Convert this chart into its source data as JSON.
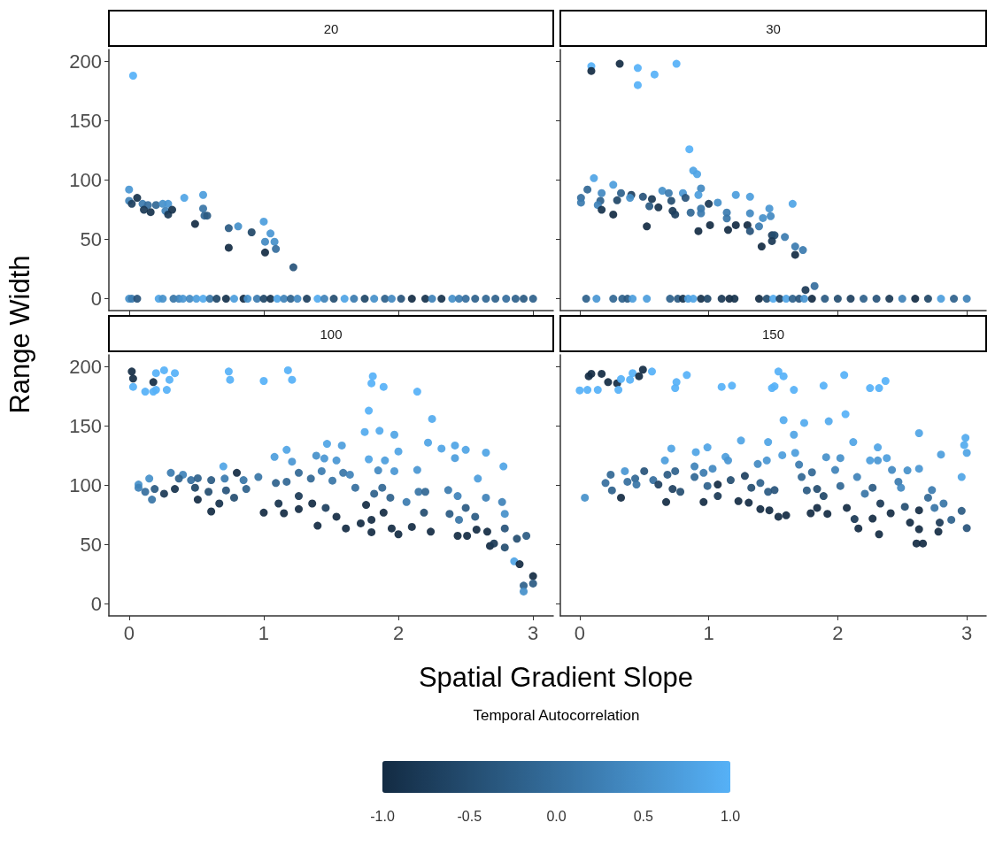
{
  "chart_data": [
    {
      "type": "scatter",
      "title": "20",
      "ylabel": "Range Width",
      "marker": "circle",
      "tick_labels": "y",
      "xlim": [
        -0.15,
        3.15
      ],
      "ylim": [
        -10,
        210
      ],
      "xticks": [
        0,
        1,
        2,
        3
      ],
      "yticks": [
        0,
        50,
        100,
        150,
        200
      ],
      "x": [
        0.03,
        0.0,
        0.0,
        0.02,
        0.06,
        0.1,
        0.14,
        0.11,
        0.16,
        0.2,
        0.25,
        0.29,
        0.27,
        0.29,
        0.32,
        0.41,
        0.55,
        0.55,
        0.56,
        0.58,
        0.49,
        0.74,
        0.81,
        0.74,
        0.91,
        1.0,
        1.05,
        1.01,
        1.08,
        1.09,
        1.01,
        1.22,
        0.0,
        0.02,
        0.06,
        0.22,
        0.25,
        0.33,
        0.37,
        0.4,
        0.45,
        0.5,
        0.55,
        0.6,
        0.65,
        0.72,
        0.78,
        0.85,
        0.88,
        0.95,
        1.0,
        1.05,
        1.1,
        1.15,
        1.2,
        1.25,
        1.32,
        1.4,
        1.45,
        1.52,
        1.6,
        1.67,
        1.75,
        1.82,
        1.9,
        1.95,
        2.02,
        2.1,
        2.2,
        2.25,
        2.32,
        2.4,
        2.45,
        2.5,
        2.57,
        2.65,
        2.72,
        2.8,
        2.87,
        2.93,
        3.0
      ],
      "values": [
        188,
        92,
        82.5,
        80,
        85,
        80,
        79,
        75,
        73,
        79,
        80,
        80,
        74,
        71,
        75,
        85,
        87.5,
        76,
        70,
        70,
        63,
        59.5,
        61,
        43,
        56,
        65,
        55,
        48,
        48,
        42,
        39,
        26.5,
        0,
        0,
        0,
        0,
        0,
        0,
        0,
        0,
        0,
        0,
        0,
        0,
        0,
        0,
        0,
        0,
        0,
        0,
        0,
        0,
        0,
        0,
        0,
        0,
        0,
        0,
        0,
        0,
        0,
        0,
        0,
        0,
        0,
        0,
        0,
        0,
        0,
        0,
        0,
        0,
        0,
        0,
        0,
        0,
        0,
        0,
        0,
        0,
        0
      ],
      "colors": [
        "#56b1f7",
        "#4996d3",
        "#3f82b8",
        "#1d3f5e",
        "#16324c",
        "#3b7baf",
        "#356e9d",
        "#1a3855",
        "#16324c",
        "#316794",
        "#4590ca",
        "#4996d3",
        "#3f82b8",
        "#1a3855",
        "#16324c",
        "#4fa4e5",
        "#4c9ddc",
        "#3875a6",
        "#316794",
        "#2a5a82",
        "#132b43",
        "#2a5a82",
        "#4590ca",
        "#132b43",
        "#204667",
        "#4c9ddc",
        "#4996d3",
        "#4289c1",
        "#4590ca",
        "#356e9d",
        "#132b43",
        "#275379",
        "#4590ca",
        "#3b7baf",
        "#275379",
        "#4fa4e5",
        "#4590ca",
        "#3875a6",
        "#3f82b8",
        "#4996d3",
        "#4289c1",
        "#4c9ddc",
        "#53aaee",
        "#3875a6",
        "#204667",
        "#16324c",
        "#4c9ddc",
        "#132b43",
        "#4590ca",
        "#3b7baf",
        "#204667",
        "#16324c",
        "#4fa4e5",
        "#3f82b8",
        "#2e618b",
        "#4289c1",
        "#1d3f5e",
        "#53aaee",
        "#3f82b8",
        "#244d70",
        "#4fa4e5",
        "#3b7baf",
        "#204667",
        "#4590ca",
        "#2e618b",
        "#4289c1",
        "#275379",
        "#132b43",
        "#16324c",
        "#3f82b8",
        "#16324c",
        "#4590ca",
        "#3b7baf",
        "#356e9d",
        "#2e618b",
        "#316794",
        "#2e618b",
        "#356e9d",
        "#2e618b",
        "#2a5a82",
        "#2e618b"
      ]
    },
    {
      "type": "scatter",
      "title": "30",
      "marker": "circle",
      "tick_labels": false,
      "xlim": [
        -0.15,
        3.15
      ],
      "ylim": [
        -10,
        210
      ],
      "xticks": [
        0,
        1,
        2,
        3
      ],
      "yticks": [
        0,
        50,
        100,
        150,
        200
      ],
      "x": [
        0.09,
        0.09,
        0.31,
        0.45,
        0.45,
        0.58,
        0.75,
        0.01,
        0.01,
        0.06,
        0.11,
        0.17,
        0.16,
        0.14,
        0.17,
        0.26,
        0.26,
        0.32,
        0.29,
        0.4,
        0.39,
        0.49,
        0.52,
        0.56,
        0.54,
        0.61,
        0.64,
        0.69,
        0.71,
        0.72,
        0.74,
        0.8,
        0.82,
        0.85,
        0.88,
        0.91,
        0.94,
        0.92,
        0.86,
        0.92,
        0.94,
        0.94,
        1.0,
        1.07,
        1.01,
        1.14,
        1.14,
        1.15,
        1.21,
        1.21,
        1.32,
        1.32,
        1.3,
        1.32,
        1.39,
        1.47,
        1.42,
        1.48,
        1.49,
        1.51,
        1.49,
        1.59,
        1.41,
        1.65,
        1.67,
        1.73,
        1.67,
        1.75,
        1.82,
        0.05,
        0.13,
        0.26,
        0.33,
        0.37,
        0.41,
        0.52,
        0.7,
        0.76,
        0.8,
        0.84,
        0.88,
        0.94,
        0.99,
        1.1,
        1.16,
        1.2,
        1.39,
        1.45,
        1.5,
        1.55,
        1.6,
        1.65,
        1.7,
        1.74,
        1.8,
        1.9,
        2.0,
        2.1,
        2.2,
        2.3,
        2.4,
        2.5,
        2.6,
        2.7,
        2.8,
        2.9,
        3.0
      ],
      "values": [
        196,
        192,
        198,
        194.5,
        180,
        189,
        198,
        85,
        81,
        92,
        101.6,
        89,
        82.5,
        79,
        75,
        96,
        71,
        89,
        83,
        87.5,
        85,
        86,
        61,
        84,
        78,
        77,
        91,
        89,
        82.5,
        74,
        71,
        89,
        85,
        126,
        108,
        105,
        93,
        87.5,
        72.6,
        57,
        76,
        72,
        80,
        81,
        62,
        72.6,
        67.7,
        58,
        87.5,
        62,
        86,
        72,
        62,
        57,
        61,
        76,
        68,
        69.6,
        53.5,
        53.5,
        48.6,
        52,
        44,
        80,
        44,
        41,
        37,
        7.4,
        10.7,
        0,
        0,
        0,
        0,
        0,
        0,
        0,
        0,
        0,
        0,
        0,
        0,
        0,
        0,
        0,
        0,
        0,
        0,
        0,
        0,
        0,
        0,
        0,
        0,
        0,
        0,
        0,
        0,
        0,
        0,
        0,
        0,
        0,
        0,
        0,
        0,
        0,
        0
      ],
      "colors": [
        "#56b1f7",
        "#132b43",
        "#132b43",
        "#56b1f7",
        "#56b1f7",
        "#56b1f7",
        "#56b1f7",
        "#356e9d",
        "#3b7baf",
        "#316794",
        "#4fa4e5",
        "#4289c1",
        "#2e618b",
        "#3f82b8",
        "#16324c",
        "#4c9ddc",
        "#132b43",
        "#2e618b",
        "#204667",
        "#1d3f5e",
        "#4590ca",
        "#275379",
        "#132b43",
        "#1a3855",
        "#2a5a82",
        "#16324c",
        "#4590ca",
        "#3b7baf",
        "#244d70",
        "#1a3855",
        "#1d3f5e",
        "#4996d3",
        "#275379",
        "#56b1f7",
        "#4fa4e5",
        "#4fa4e5",
        "#4289c1",
        "#4c9ddc",
        "#316794",
        "#132b43",
        "#3875a6",
        "#3b7baf",
        "#1a3855",
        "#4590ca",
        "#132b43",
        "#3b7baf",
        "#3875a6",
        "#132b43",
        "#4c9ddc",
        "#132b43",
        "#4c9ddc",
        "#4289c1",
        "#132b43",
        "#275379",
        "#3b7baf",
        "#4996d3",
        "#4590ca",
        "#4289c1",
        "#1d3f5e",
        "#244d70",
        "#1a3855",
        "#3b7baf",
        "#132b43",
        "#4fa4e5",
        "#3b7baf",
        "#3b7baf",
        "#132b43",
        "#1a3855",
        "#356e9d",
        "#2e618b",
        "#4996d3",
        "#316794",
        "#2e618b",
        "#2a5a82",
        "#4c9ddc",
        "#4c9ddc",
        "#2e618b",
        "#2a5a82",
        "#16324c",
        "#4c9ddc",
        "#4fa4e5",
        "#16324c",
        "#204667",
        "#1a3855",
        "#132b43",
        "#16324c",
        "#132b43",
        "#244d70",
        "#53aaee",
        "#1d3f5e",
        "#4fa4e5",
        "#2e618b",
        "#275379",
        "#4996d3",
        "#132b43",
        "#2a5a82",
        "#244d70",
        "#1d3f5e",
        "#2e618b",
        "#275379",
        "#1a3855",
        "#3f82b8",
        "#132b43",
        "#204667",
        "#4c9ddc",
        "#2e618b",
        "#3f82b8"
      ]
    },
    {
      "type": "scatter",
      "title": "100",
      "marker": "circle",
      "xlim": [
        -0.15,
        3.15
      ],
      "ylim": [
        -10,
        210
      ],
      "xticks": [
        0,
        1,
        2,
        3
      ],
      "yticks": [
        0,
        50,
        100,
        150,
        200
      ],
      "x": [
        0.02,
        0.03,
        0.03,
        0.18,
        0.2,
        0.26,
        0.34,
        0.3,
        0.28,
        0.12,
        0.18,
        0.2,
        0.74,
        0.75,
        1.0,
        1.18,
        1.21,
        1.81,
        1.8,
        1.89,
        2.14,
        0.07,
        0.07,
        0.15,
        0.12,
        0.17,
        0.19,
        0.26,
        0.31,
        0.34,
        0.4,
        0.37,
        0.46,
        0.51,
        0.51,
        0.49,
        0.61,
        0.59,
        0.61,
        0.67,
        0.7,
        0.71,
        0.72,
        0.78,
        0.8,
        0.85,
        0.87,
        0.96,
        1.0,
        1.08,
        1.17,
        1.21,
        1.09,
        1.17,
        1.11,
        1.15,
        1.26,
        1.26,
        1.26,
        1.36,
        1.35,
        1.39,
        1.45,
        1.47,
        1.43,
        1.4,
        1.46,
        1.54,
        1.58,
        1.51,
        1.54,
        1.59,
        1.61,
        1.64,
        1.68,
        1.72,
        1.76,
        1.78,
        1.75,
        1.78,
        1.8,
        1.8,
        1.82,
        1.86,
        1.85,
        1.9,
        1.88,
        1.89,
        1.97,
        2.0,
        1.97,
        1.94,
        1.95,
        2.0,
        2.06,
        2.1,
        2.14,
        2.15,
        2.2,
        2.19,
        2.24,
        2.22,
        2.25,
        2.32,
        2.42,
        2.5,
        2.42,
        2.37,
        2.44,
        2.38,
        2.45,
        2.44,
        2.51,
        2.5,
        2.57,
        2.59,
        2.58,
        2.65,
        2.65,
        2.66,
        2.68,
        2.71,
        2.77,
        2.79,
        2.78,
        2.79,
        2.79,
        2.88,
        2.95,
        2.86,
        2.9,
        3.0,
        3.0,
        2.93,
        2.93
      ],
      "values": [
        196,
        190,
        183,
        187,
        194.6,
        197,
        194.6,
        189,
        180.5,
        179,
        179,
        180.5,
        196,
        189,
        188,
        197,
        189,
        192,
        186,
        183,
        179,
        100.7,
        98,
        105.7,
        94.6,
        88,
        97,
        93,
        110.6,
        97,
        109,
        105.7,
        104.4,
        106,
        88,
        98,
        104.4,
        94.6,
        78,
        84.7,
        116,
        105.7,
        95.8,
        89.6,
        110.6,
        104.4,
        97,
        107,
        77,
        124,
        130,
        120,
        102,
        103,
        84.7,
        76.5,
        110.6,
        91,
        80,
        84.7,
        105.7,
        125,
        122.7,
        135,
        112,
        66,
        81,
        121,
        133.6,
        104,
        73.6,
        110.6,
        63.7,
        109,
        98,
        68,
        83.5,
        163,
        145,
        122,
        71,
        60.5,
        93,
        146,
        112.6,
        121,
        98,
        77,
        142.7,
        128.6,
        112,
        89.6,
        63.7,
        58.8,
        86,
        65,
        113,
        94.6,
        94.6,
        77,
        61,
        136,
        156,
        131,
        133.6,
        130,
        123,
        96,
        91,
        76,
        71,
        57.5,
        57.5,
        81,
        73.6,
        105.7,
        62.7,
        127.6,
        89.6,
        61,
        49,
        51,
        86,
        76,
        116,
        63.7,
        47.7,
        55,
        57.5,
        36,
        33.6,
        23.5,
        17.3,
        15.5,
        10.6
      ],
      "colors": [
        "#132b43",
        "#132b43",
        "#56b1f7",
        "#132b43",
        "#56b1f7",
        "#56b1f7",
        "#56b1f7",
        "#56b1f7",
        "#56b1f7",
        "#56b1f7",
        "#56b1f7",
        "#56b1f7",
        "#56b1f7",
        "#56b1f7",
        "#56b1f7",
        "#56b1f7",
        "#56b1f7",
        "#56b1f7",
        "#56b1f7",
        "#56b1f7",
        "#56b1f7",
        "#4590ca",
        "#3f82b8",
        "#4590ca",
        "#356e9d",
        "#3875a6",
        "#2a5a82",
        "#1a3855",
        "#3b7baf",
        "#16324c",
        "#3f82b8",
        "#2e618b",
        "#356e9d",
        "#2e618b",
        "#132b43",
        "#204667",
        "#2a5a82",
        "#244d70",
        "#132b43",
        "#16324c",
        "#4fa4e5",
        "#3b7baf",
        "#275379",
        "#244d70",
        "#132b43",
        "#3875a6",
        "#2e618b",
        "#3875a6",
        "#132b43",
        "#4c9ddc",
        "#4fa4e5",
        "#4996d3",
        "#2e618b",
        "#316794",
        "#16324c",
        "#132b43",
        "#316794",
        "#1a3855",
        "#132b43",
        "#132b43",
        "#316794",
        "#4590ca",
        "#4996d3",
        "#4fa4e5",
        "#3b7baf",
        "#132b43",
        "#1d3f5e",
        "#4996d3",
        "#4c9ddc",
        "#3875a6",
        "#132b43",
        "#3875a6",
        "#132b43",
        "#3f82b8",
        "#356e9d",
        "#132b43",
        "#132b43",
        "#56b1f7",
        "#53aaee",
        "#4fa4e5",
        "#132b43",
        "#132b43",
        "#2e618b",
        "#53aaee",
        "#4289c1",
        "#4c9ddc",
        "#316794",
        "#132b43",
        "#4fa4e5",
        "#4fa4e5",
        "#4996d3",
        "#2e618b",
        "#132b43",
        "#132b43",
        "#3b7baf",
        "#132b43",
        "#4996d3",
        "#3875a6",
        "#316794",
        "#244d70",
        "#132b43",
        "#4fa4e5",
        "#53aaee",
        "#4fa4e5",
        "#4fa4e5",
        "#4fa4e5",
        "#4c9ddc",
        "#3b7baf",
        "#3f82b8",
        "#2a5a82",
        "#3875a6",
        "#132b43",
        "#132b43",
        "#2a5a82",
        "#2a5a82",
        "#4c9ddc",
        "#132b43",
        "#4fa4e5",
        "#3f82b8",
        "#132b43",
        "#132b43",
        "#1a3855",
        "#3f82b8",
        "#4590ca",
        "#4fa4e5",
        "#275379",
        "#244d70",
        "#244d70",
        "#2a5a82",
        "#4fa4e5",
        "#132b43",
        "#132b43",
        "#2a5a82",
        "#2e618b",
        "#4590ca"
      ]
    },
    {
      "type": "scatter",
      "title": "150",
      "xlabel": "Spatial Gradient Slope",
      "clabel": "Temporal Autocorrelation",
      "clim": [
        -1,
        1
      ],
      "cticks": [
        {
          "value": -1,
          "label": "-1.0"
        },
        {
          "value": -0.5,
          "label": "-0.5"
        },
        {
          "value": 0,
          "label": "0.0"
        },
        {
          "value": 0.5,
          "label": "0.5"
        },
        {
          "value": 1,
          "label": "1.0"
        }
      ],
      "marker": "circle",
      "tick_labels": "x",
      "xlim": [
        -0.15,
        3.15
      ],
      "ylim": [
        -10,
        210
      ],
      "xticks": [
        0,
        1,
        2,
        3
      ],
      "yticks": [
        0,
        50,
        100,
        150,
        200
      ],
      "x": [
        0.0,
        0.06,
        0.07,
        0.09,
        0.14,
        0.17,
        0.22,
        0.29,
        0.3,
        0.32,
        0.39,
        0.41,
        0.46,
        0.49,
        0.56,
        0.74,
        0.75,
        0.83,
        1.1,
        1.18,
        1.49,
        1.51,
        1.54,
        1.58,
        1.66,
        1.89,
        2.05,
        2.25,
        2.32,
        2.37,
        0.04,
        0.2,
        0.24,
        0.25,
        0.32,
        0.35,
        0.37,
        0.43,
        0.44,
        0.5,
        0.57,
        0.61,
        0.66,
        0.68,
        0.67,
        0.71,
        0.74,
        0.72,
        0.78,
        0.9,
        0.89,
        0.89,
        0.96,
        0.96,
        0.99,
        1.03,
        0.99,
        1.07,
        1.07,
        1.13,
        1.15,
        1.17,
        1.23,
        1.25,
        1.28,
        1.31,
        1.33,
        1.38,
        1.4,
        1.4,
        1.45,
        1.46,
        1.46,
        1.47,
        1.51,
        1.54,
        1.58,
        1.57,
        1.6,
        1.66,
        1.67,
        1.7,
        1.74,
        1.72,
        1.76,
        1.8,
        1.79,
        1.84,
        1.84,
        1.89,
        1.91,
        1.92,
        1.93,
        1.98,
        2.02,
        2.02,
        2.06,
        2.07,
        2.12,
        2.13,
        2.16,
        2.15,
        2.21,
        2.25,
        2.27,
        2.27,
        2.31,
        2.31,
        2.32,
        2.33,
        2.38,
        2.42,
        2.41,
        2.47,
        2.49,
        2.52,
        2.54,
        2.56,
        2.63,
        2.63,
        2.63,
        2.63,
        2.61,
        2.66,
        2.73,
        2.7,
        2.75,
        2.79,
        2.78,
        2.8,
        2.82,
        2.88,
        2.96,
        2.96,
        2.99,
        2.98,
        3.0,
        3.0
      ],
      "values": [
        180,
        180.5,
        192,
        194,
        180.5,
        194,
        187,
        186,
        180.5,
        189.6,
        189,
        194.6,
        192,
        197.5,
        196,
        182,
        187,
        193,
        183,
        184,
        182,
        183.5,
        196,
        192,
        180.5,
        184,
        193,
        182,
        182,
        188,
        89.6,
        102,
        109,
        95.8,
        89.6,
        112,
        103,
        105.7,
        100.7,
        112,
        104.4,
        100.7,
        121,
        109,
        86,
        131,
        112,
        97,
        94.6,
        128,
        116,
        107,
        110.6,
        86,
        132,
        114,
        99.5,
        100.7,
        91,
        124,
        121,
        104.4,
        86.7,
        137.8,
        108,
        85.4,
        98,
        118,
        80,
        102,
        121,
        136.5,
        94.6,
        79,
        96,
        73.6,
        155,
        125.4,
        74.8,
        142.7,
        127.4,
        117.5,
        152.6,
        107,
        95.8,
        111,
        76.5,
        81,
        97,
        91,
        123.7,
        76,
        154,
        113,
        123,
        99.5,
        160,
        81,
        136.5,
        71.6,
        63.7,
        107,
        93,
        121,
        98,
        72,
        132,
        121,
        58.8,
        84.7,
        123,
        113,
        76.5,
        103,
        98,
        82,
        112.6,
        68.6,
        144,
        114,
        79,
        63,
        51,
        51,
        96,
        89.6,
        81,
        68.6,
        61,
        126,
        84.7,
        71,
        107,
        78.5,
        140,
        134,
        127.4,
        64
      ],
      "cvalues": [
        1,
        1,
        -1,
        -1,
        1,
        -1,
        -1,
        -1,
        1,
        1,
        1,
        1,
        -1,
        -1,
        1,
        1,
        1,
        1,
        1,
        1,
        1,
        1,
        1,
        1,
        1,
        1,
        1,
        1,
        1,
        1,
        0.5,
        0,
        -0.1,
        -0.2,
        -1,
        0.6,
        0,
        -0.1,
        0.1,
        -0.4,
        0,
        -0.7,
        0.7,
        -0.3,
        -1,
        0.8,
        -0.2,
        -0.7,
        -0.5,
        0.8,
        0.3,
        -0.1,
        0.2,
        -1,
        0.8,
        0.4,
        -0.2,
        -1,
        -0.8,
        0.7,
        0.6,
        -0.5,
        -1,
        0.8,
        -0.7,
        -1,
        -0.5,
        0.4,
        -1,
        -0.2,
        0.6,
        0.8,
        -0.3,
        -1,
        -0.4,
        -1,
        0.9,
        0.7,
        -1,
        0.8,
        0.7,
        0.2,
        0.9,
        -0.1,
        -0.3,
        -0.1,
        -1,
        -1,
        -0.5,
        -0.6,
        0.5,
        -1,
        0.9,
        0.3,
        0.5,
        -0.1,
        1.0,
        -1,
        0.8,
        -0.8,
        -1,
        0.3,
        0.1,
        0.7,
        -0.3,
        -1,
        0.8,
        0.6,
        -1,
        -0.8,
        0.7,
        0.4,
        -1,
        0.2,
        0.4,
        -0.5,
        0.5,
        -1,
        0.8,
        0.6,
        -1,
        -1,
        -1,
        -1,
        0.2,
        -0.1,
        0.1,
        -0.8,
        -1,
        0.7,
        0.1,
        -0.2,
        0.8,
        -0.3,
        0.9,
        0.9,
        0.8,
        -0.4
      ]
    }
  ]
}
